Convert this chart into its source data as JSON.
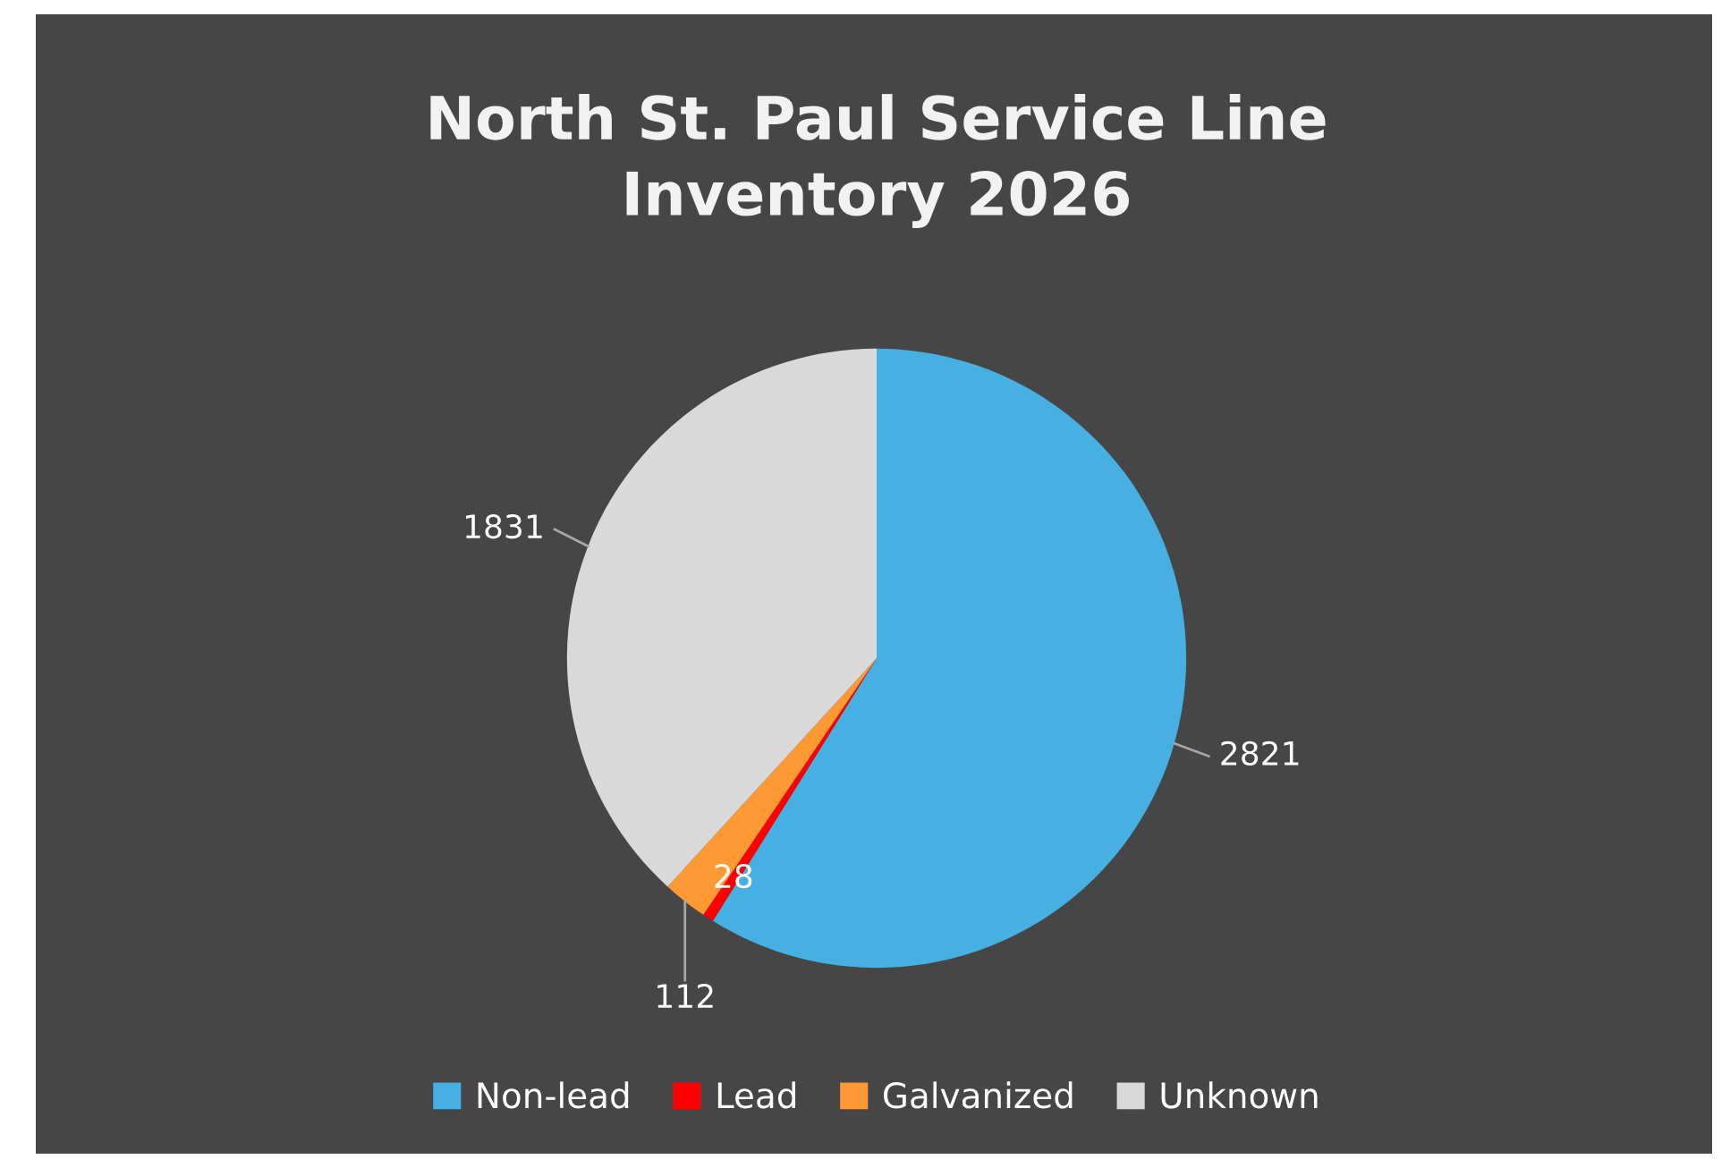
{
  "chart_data": {
    "type": "pie",
    "title": "North St. Paul Service Line\nInventory 2026",
    "categories": [
      "Non-lead",
      "Lead",
      "Galvanized",
      "Unknown"
    ],
    "values": [
      2821,
      28,
      112,
      1831
    ],
    "colors": [
      "#45b0e1",
      "#ff0000",
      "#ff9933",
      "#d9d9d9"
    ],
    "data_labels": true,
    "legend": "bottom"
  }
}
